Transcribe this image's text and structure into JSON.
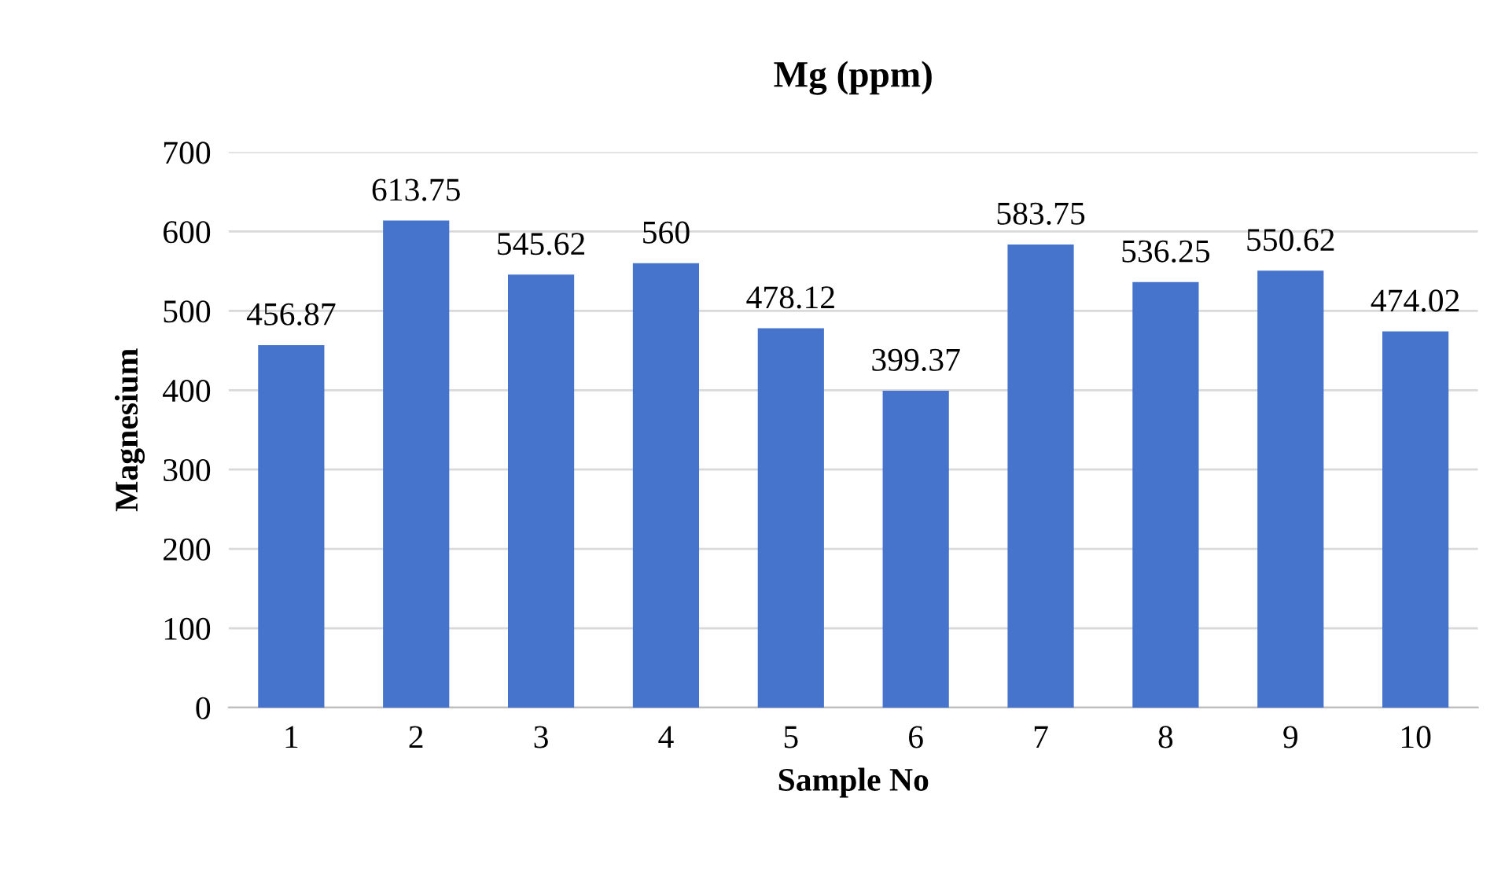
{
  "chart_data": {
    "type": "bar",
    "title": "Mg (ppm)",
    "xlabel": "Sample No",
    "ylabel": "Magnesium",
    "categories": [
      "1",
      "2",
      "3",
      "4",
      "5",
      "6",
      "7",
      "8",
      "9",
      "10"
    ],
    "values": [
      456.87,
      613.75,
      545.62,
      560,
      478.12,
      399.37,
      583.75,
      536.25,
      550.62,
      474.02
    ],
    "color": "#4673cc",
    "ylim": [
      0,
      700
    ],
    "yticks": [
      0,
      100,
      200,
      300,
      400,
      500,
      600,
      700
    ],
    "grid": "y",
    "data_labels": true
  }
}
